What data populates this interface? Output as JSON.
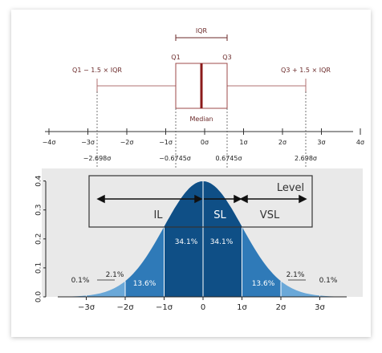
{
  "boxplot": {
    "iqr_label": "IQR",
    "q1_label": "Q1",
    "q3_label": "Q3",
    "median_label": "Median",
    "left_whisker_label": "Q1 − 1.5 × IQR",
    "right_whisker_label": "Q3 + 1.5 × IQR",
    "colors": {
      "box": "#9c4a4a",
      "median": "#8b1a1a",
      "text": "#6b2a2a"
    }
  },
  "sigma_axis": {
    "ticks": [
      "−4σ",
      "−3σ",
      "−2σ",
      "−1σ",
      "0σ",
      "1σ",
      "2σ",
      "3σ",
      "4σ"
    ],
    "quantile_labels": [
      "−2.698σ",
      "−0.6745σ",
      "0.6745σ",
      "2.698σ"
    ]
  },
  "levels": {
    "title": "Level",
    "il": "IL",
    "sl": "SL",
    "vsl": "VSL"
  },
  "chart_data": {
    "type": "area",
    "yticks": [
      "0.0",
      "0.1",
      "0.2",
      "0.3",
      "0.4"
    ],
    "xticks": [
      "−3σ",
      "−2σ",
      "−1σ",
      "0",
      "1σ",
      "2σ",
      "3σ"
    ],
    "percent_labels": [
      "0.1%",
      "2.1%",
      "13.6%",
      "34.1%",
      "34.1%",
      "13.6%",
      "2.1%",
      "0.1%"
    ],
    "ylim": [
      0,
      0.4
    ],
    "colors": {
      "outer": "#6aa8d8",
      "mid": "#2f7ab8",
      "inner": "#0f4f86",
      "panel": "#e9e9e9"
    }
  }
}
